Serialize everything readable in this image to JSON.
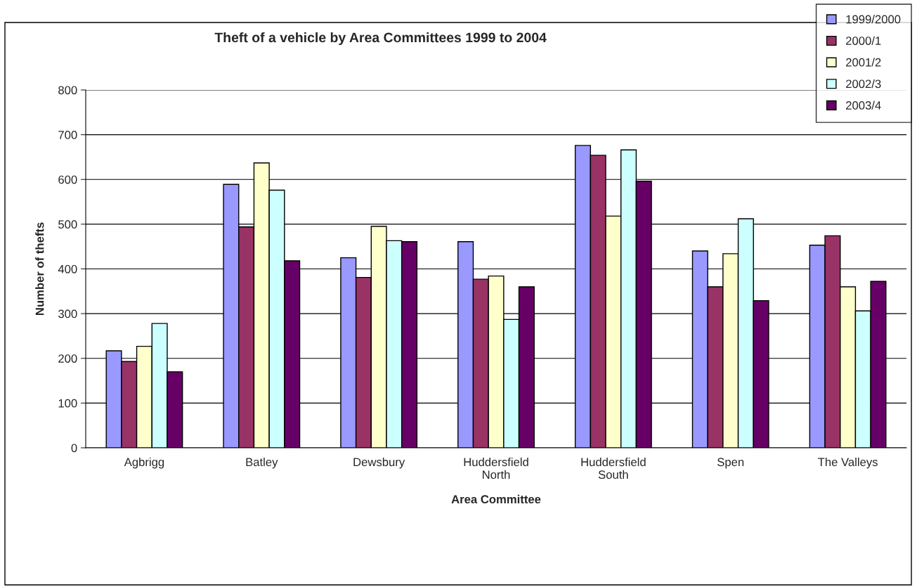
{
  "chart_data": {
    "type": "bar",
    "title": "Theft of a vehicle by Area Committees 1999 to 2004",
    "xlabel": "Area Committee",
    "ylabel": "Number of thefts",
    "categories": [
      "Agbrigg",
      "Batley",
      "Dewsbury",
      "Huddersfield\nNorth",
      "Huddersfield\nSouth",
      "Spen",
      "The Valleys"
    ],
    "series": [
      {
        "name": "1999/2000",
        "color": "#9999ff",
        "values": [
          217,
          589,
          425,
          461,
          676,
          440,
          453
        ]
      },
      {
        "name": "2000/1",
        "color": "#993366",
        "values": [
          193,
          494,
          381,
          377,
          654,
          360,
          474
        ]
      },
      {
        "name": "2001/2",
        "color": "#ffffcc",
        "values": [
          227,
          637,
          495,
          384,
          518,
          434,
          360
        ]
      },
      {
        "name": "2002/3",
        "color": "#ccffff",
        "values": [
          278,
          576,
          463,
          287,
          666,
          512,
          306
        ]
      },
      {
        "name": "2003/4",
        "color": "#660066",
        "values": [
          170,
          418,
          461,
          360,
          596,
          329,
          372
        ]
      }
    ],
    "ylim": [
      0,
      800
    ],
    "yticks": [
      0,
      100,
      200,
      300,
      400,
      500,
      600,
      700,
      800
    ],
    "grid": "y",
    "legend": "top right"
  }
}
